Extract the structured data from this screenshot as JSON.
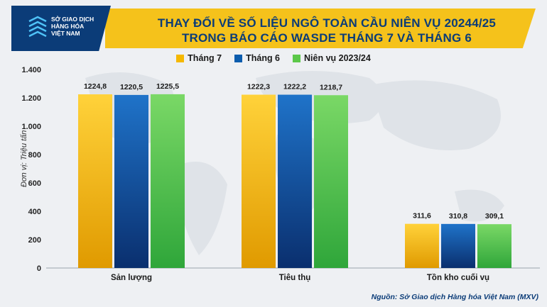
{
  "logo": {
    "line1": "SỞ GIAO DỊCH",
    "line2": "HÀNG HÓA",
    "line3": "VIỆT NAM"
  },
  "title": {
    "line1": "THAY ĐỔI VỀ SỐ LIỆU NGÔ TOÀN CẦU NIÊN VỤ 20244/25",
    "line2": "TRONG BÁO CÁO WASDE THÁNG 7 VÀ THÁNG 6"
  },
  "source": "Nguồn: Sở Giao dịch Hàng hóa Việt Nam (MXV)",
  "chart_data": {
    "type": "bar",
    "title": "THAY ĐỔI VỀ SỐ LIỆU NGÔ TOÀN CẦU NIÊN VỤ 20244/25 TRONG BÁO CÁO WASDE THÁNG 7 VÀ THÁNG 6",
    "ylabel": "Đơn vị: Triệu tấn",
    "xlabel": "",
    "categories": [
      "Sản lượng",
      "Tiêu thụ",
      "Tồn kho cuối vụ"
    ],
    "series": [
      {
        "name": "Tháng 7",
        "color": "#f5b800",
        "values": [
          1224.8,
          1222.3,
          311.6
        ],
        "labels": [
          "1224,8",
          "1222,3",
          "311,6"
        ]
      },
      {
        "name": "Tháng 6",
        "color": "#0b5cad",
        "values": [
          1220.5,
          1222.2,
          310.8
        ],
        "labels": [
          "1220,5",
          "1222,2",
          "310,8"
        ]
      },
      {
        "name": "Niên vụ 2023/24",
        "color": "#5cc84a",
        "values": [
          1225.5,
          1218.7,
          309.1
        ],
        "labels": [
          "1225,5",
          "1218,7",
          "309,1"
        ]
      }
    ],
    "ylim": [
      0,
      1400
    ],
    "yticks": [
      0,
      200,
      400,
      600,
      800,
      1000,
      1200,
      1400
    ],
    "yticklabels": [
      "0",
      "200",
      "400",
      "600",
      "800",
      "1.000",
      "1.200",
      "1.400"
    ],
    "grid": false,
    "legend": "top-center"
  }
}
